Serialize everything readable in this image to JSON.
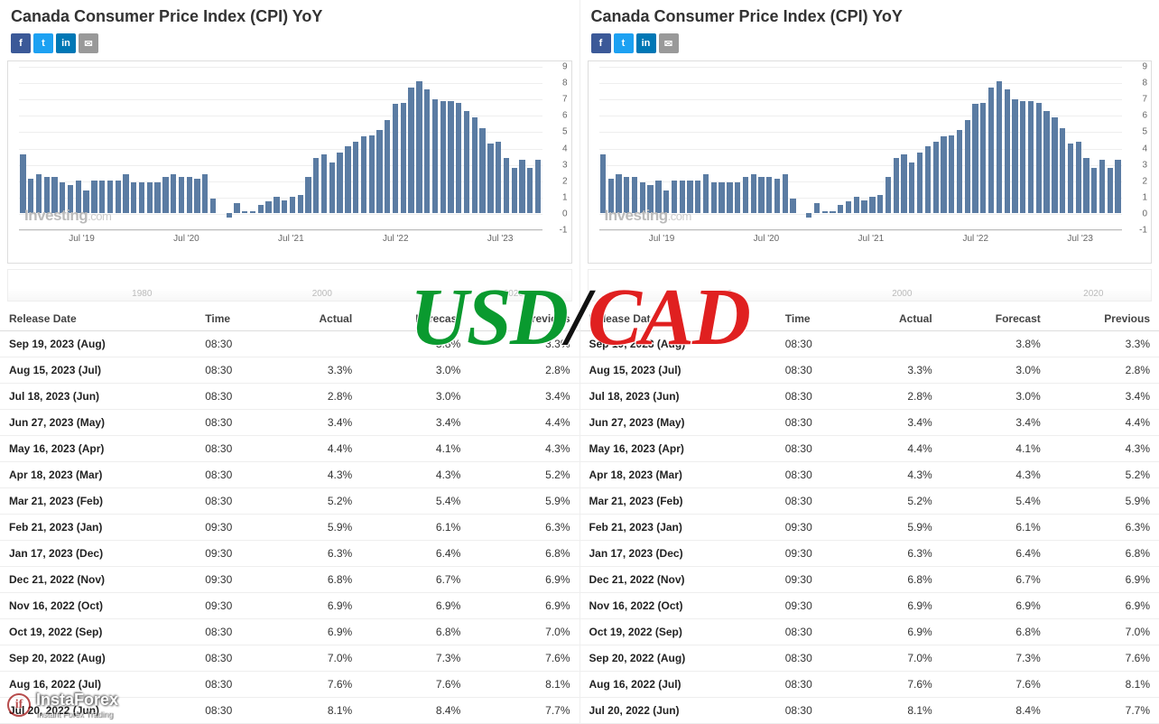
{
  "title": "Canada Consumer Price Index (CPI) YoY",
  "overlay": {
    "left": "USD",
    "slash": "/",
    "right": "CAD"
  },
  "instaforex": {
    "main": "InstaForex",
    "sub": "Instant Forex Trading"
  },
  "social": {
    "facebook": "f",
    "twitter": "t",
    "linkedin": "in",
    "email": "✉"
  },
  "watermark": {
    "brand": "Investing",
    "dotcom": ".com"
  },
  "chart": {
    "type": "bar",
    "bar_color": "#5b7ca3",
    "background_color": "#ffffff",
    "grid_color": "#eeeeee",
    "axis_color": "#bbbbbb",
    "label_fontsize": 10,
    "ylim": [
      -1,
      9
    ],
    "yticks": [
      -1,
      0,
      1,
      2,
      3,
      4,
      5,
      6,
      7,
      8,
      9
    ],
    "x_axis_labels": [
      "Jul '19",
      "Jul '20",
      "Jul '21",
      "Jul '22",
      "Jul '23"
    ],
    "x_label_positions_pct": [
      12,
      32,
      52,
      72,
      92
    ],
    "values": [
      3.6,
      2.1,
      2.4,
      2.2,
      2.2,
      1.9,
      1.7,
      2.0,
      1.4,
      2.0,
      2.0,
      2.0,
      2.0,
      2.4,
      1.9,
      1.9,
      1.9,
      1.9,
      2.2,
      2.4,
      2.2,
      2.2,
      2.1,
      2.4,
      0.9,
      0.0,
      -0.3,
      0.6,
      0.1,
      0.1,
      0.5,
      0.7,
      1.0,
      0.8,
      1.0,
      1.1,
      2.2,
      3.4,
      3.6,
      3.1,
      3.7,
      4.1,
      4.4,
      4.7,
      4.8,
      5.1,
      5.7,
      6.7,
      6.8,
      7.7,
      8.1,
      7.6,
      7.0,
      6.9,
      6.9,
      6.8,
      6.3,
      5.9,
      5.2,
      4.3,
      4.4,
      3.4,
      2.8,
      3.3,
      2.8,
      3.3
    ],
    "bar_width": 0.72
  },
  "mini_chart": {
    "labels": [
      "1980",
      "2000",
      "2020"
    ],
    "positions_pct": [
      22,
      54,
      88
    ]
  },
  "table": {
    "columns": [
      "Release Date",
      "Time",
      "Actual",
      "Forecast",
      "Previous"
    ],
    "col_align": [
      "left",
      "left",
      "right",
      "right",
      "right"
    ],
    "value_colors": {
      "green": "#1a8a3a",
      "red": "#d43030",
      "neutral": "#333333"
    },
    "rows": [
      {
        "date": "Sep 19, 2023 (Aug)",
        "time": "08:30",
        "actual": "",
        "actual_color": "",
        "forecast": "3.8%",
        "previous": "3.3%"
      },
      {
        "date": "Aug 15, 2023 (Jul)",
        "time": "08:30",
        "actual": "3.3%",
        "actual_color": "green",
        "forecast": "3.0%",
        "previous": "2.8%"
      },
      {
        "date": "Jul 18, 2023 (Jun)",
        "time": "08:30",
        "actual": "2.8%",
        "actual_color": "red",
        "forecast": "3.0%",
        "previous": "3.4%"
      },
      {
        "date": "Jun 27, 2023 (May)",
        "time": "08:30",
        "actual": "3.4%",
        "actual_color": "",
        "forecast": "3.4%",
        "previous": "4.4%"
      },
      {
        "date": "May 16, 2023 (Apr)",
        "time": "08:30",
        "actual": "4.4%",
        "actual_color": "green",
        "forecast": "4.1%",
        "previous": "4.3%"
      },
      {
        "date": "Apr 18, 2023 (Mar)",
        "time": "08:30",
        "actual": "4.3%",
        "actual_color": "",
        "forecast": "4.3%",
        "previous": "5.2%"
      },
      {
        "date": "Mar 21, 2023 (Feb)",
        "time": "08:30",
        "actual": "5.2%",
        "actual_color": "red",
        "forecast": "5.4%",
        "previous": "5.9%"
      },
      {
        "date": "Feb 21, 2023 (Jan)",
        "time": "09:30",
        "actual": "5.9%",
        "actual_color": "red",
        "forecast": "6.1%",
        "previous": "6.3%"
      },
      {
        "date": "Jan 17, 2023 (Dec)",
        "time": "09:30",
        "actual": "6.3%",
        "actual_color": "red",
        "forecast": "6.4%",
        "previous": "6.8%"
      },
      {
        "date": "Dec 21, 2022 (Nov)",
        "time": "09:30",
        "actual": "6.8%",
        "actual_color": "green",
        "forecast": "6.7%",
        "previous": "6.9%"
      },
      {
        "date": "Nov 16, 2022 (Oct)",
        "time": "09:30",
        "actual": "6.9%",
        "actual_color": "",
        "forecast": "6.9%",
        "previous": "6.9%"
      },
      {
        "date": "Oct 19, 2022 (Sep)",
        "time": "08:30",
        "actual": "6.9%",
        "actual_color": "green",
        "forecast": "6.8%",
        "previous": "7.0%"
      },
      {
        "date": "Sep 20, 2022 (Aug)",
        "time": "08:30",
        "actual": "7.0%",
        "actual_color": "red",
        "forecast": "7.3%",
        "previous": "7.6%"
      },
      {
        "date": "Aug 16, 2022 (Jul)",
        "time": "08:30",
        "actual": "7.6%",
        "actual_color": "",
        "forecast": "7.6%",
        "previous": "8.1%"
      },
      {
        "date": "Jul 20, 2022 (Jun)",
        "time": "08:30",
        "actual": "8.1%",
        "actual_color": "red",
        "forecast": "8.4%",
        "previous": "7.7%"
      }
    ]
  }
}
